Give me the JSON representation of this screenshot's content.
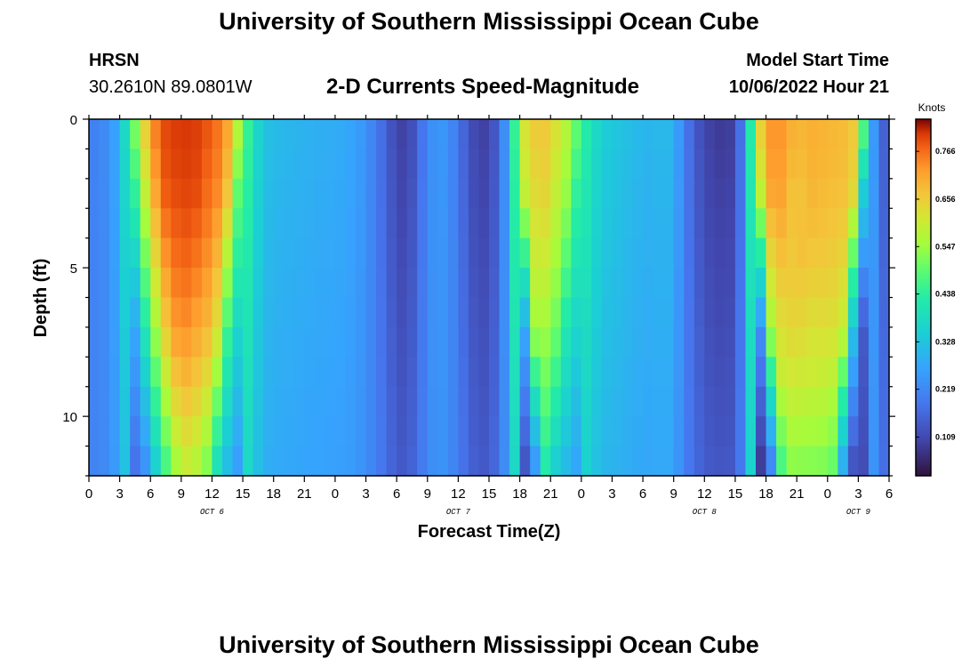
{
  "header": {
    "title": "University of Southern Mississippi Ocean Cube",
    "station": "HRSN",
    "coords": "30.2610N  89.0801W",
    "subtitle": "2-D Currents Speed-Magnitude",
    "model_label": "Model Start Time",
    "model_time": "10/06/2022 Hour 21"
  },
  "footer": {
    "title": "University of Southern Mississippi Ocean Cube"
  },
  "chart_data": {
    "type": "heatmap",
    "title": "2-D Currents Speed-Magnitude",
    "xlabel": "Forecast Time(Z)",
    "ylabel": "Depth (ft)",
    "x_ticks": [
      "0",
      "3",
      "6",
      "9",
      "12",
      "15",
      "18",
      "21",
      "0",
      "3",
      "6",
      "9",
      "12",
      "15",
      "18",
      "21",
      "0",
      "3",
      "6",
      "9",
      "12",
      "15",
      "18",
      "21",
      "0",
      "3",
      "6"
    ],
    "x_range_hours": [
      0,
      78
    ],
    "day_labels": [
      {
        "label": "OCT 6",
        "hour": 12
      },
      {
        "label": "OCT 7",
        "hour": 36
      },
      {
        "label": "OCT 8",
        "hour": 60
      },
      {
        "label": "OCT 9",
        "hour": 75
      }
    ],
    "y_ticks": [
      "0",
      "5",
      "10"
    ],
    "y_range_ft": [
      0,
      12
    ],
    "depths_ft": [
      0.5,
      1.5,
      2.5,
      3.5,
      4.5,
      5.5,
      6.5,
      7.5,
      8.5,
      9.5,
      10.5,
      11.5
    ],
    "colorbar": {
      "title": "Knots",
      "ticks": [
        "0.766",
        "0.656",
        "0.547",
        "0.438",
        "0.328",
        "0.219",
        "0.109"
      ],
      "range": [
        0.02,
        0.84
      ]
    },
    "surface_speed_profile": {
      "hours": [
        0,
        2,
        3,
        4,
        5,
        6,
        7,
        9,
        11,
        13,
        14,
        15,
        16,
        17,
        18,
        20,
        22,
        25,
        27,
        29,
        30,
        31,
        32,
        33,
        34,
        35,
        37,
        38,
        39,
        40,
        41,
        42,
        44,
        45,
        46,
        47,
        48,
        50,
        54,
        55,
        56,
        57,
        58,
        60,
        62,
        63,
        64,
        65,
        66,
        67,
        68,
        69,
        70,
        74,
        75,
        76,
        77,
        78
      ],
      "values": [
        0.2,
        0.23,
        0.3,
        0.45,
        0.6,
        0.72,
        0.79,
        0.81,
        0.8,
        0.75,
        0.68,
        0.5,
        0.4,
        0.33,
        0.31,
        0.3,
        0.29,
        0.28,
        0.24,
        0.15,
        0.1,
        0.09,
        0.15,
        0.22,
        0.25,
        0.24,
        0.13,
        0.09,
        0.1,
        0.16,
        0.3,
        0.6,
        0.68,
        0.65,
        0.6,
        0.55,
        0.45,
        0.35,
        0.3,
        0.3,
        0.31,
        0.3,
        0.2,
        0.1,
        0.08,
        0.1,
        0.25,
        0.6,
        0.72,
        0.74,
        0.72,
        0.68,
        0.7,
        0.68,
        0.65,
        0.35,
        0.15,
        0.15
      ]
    }
  }
}
